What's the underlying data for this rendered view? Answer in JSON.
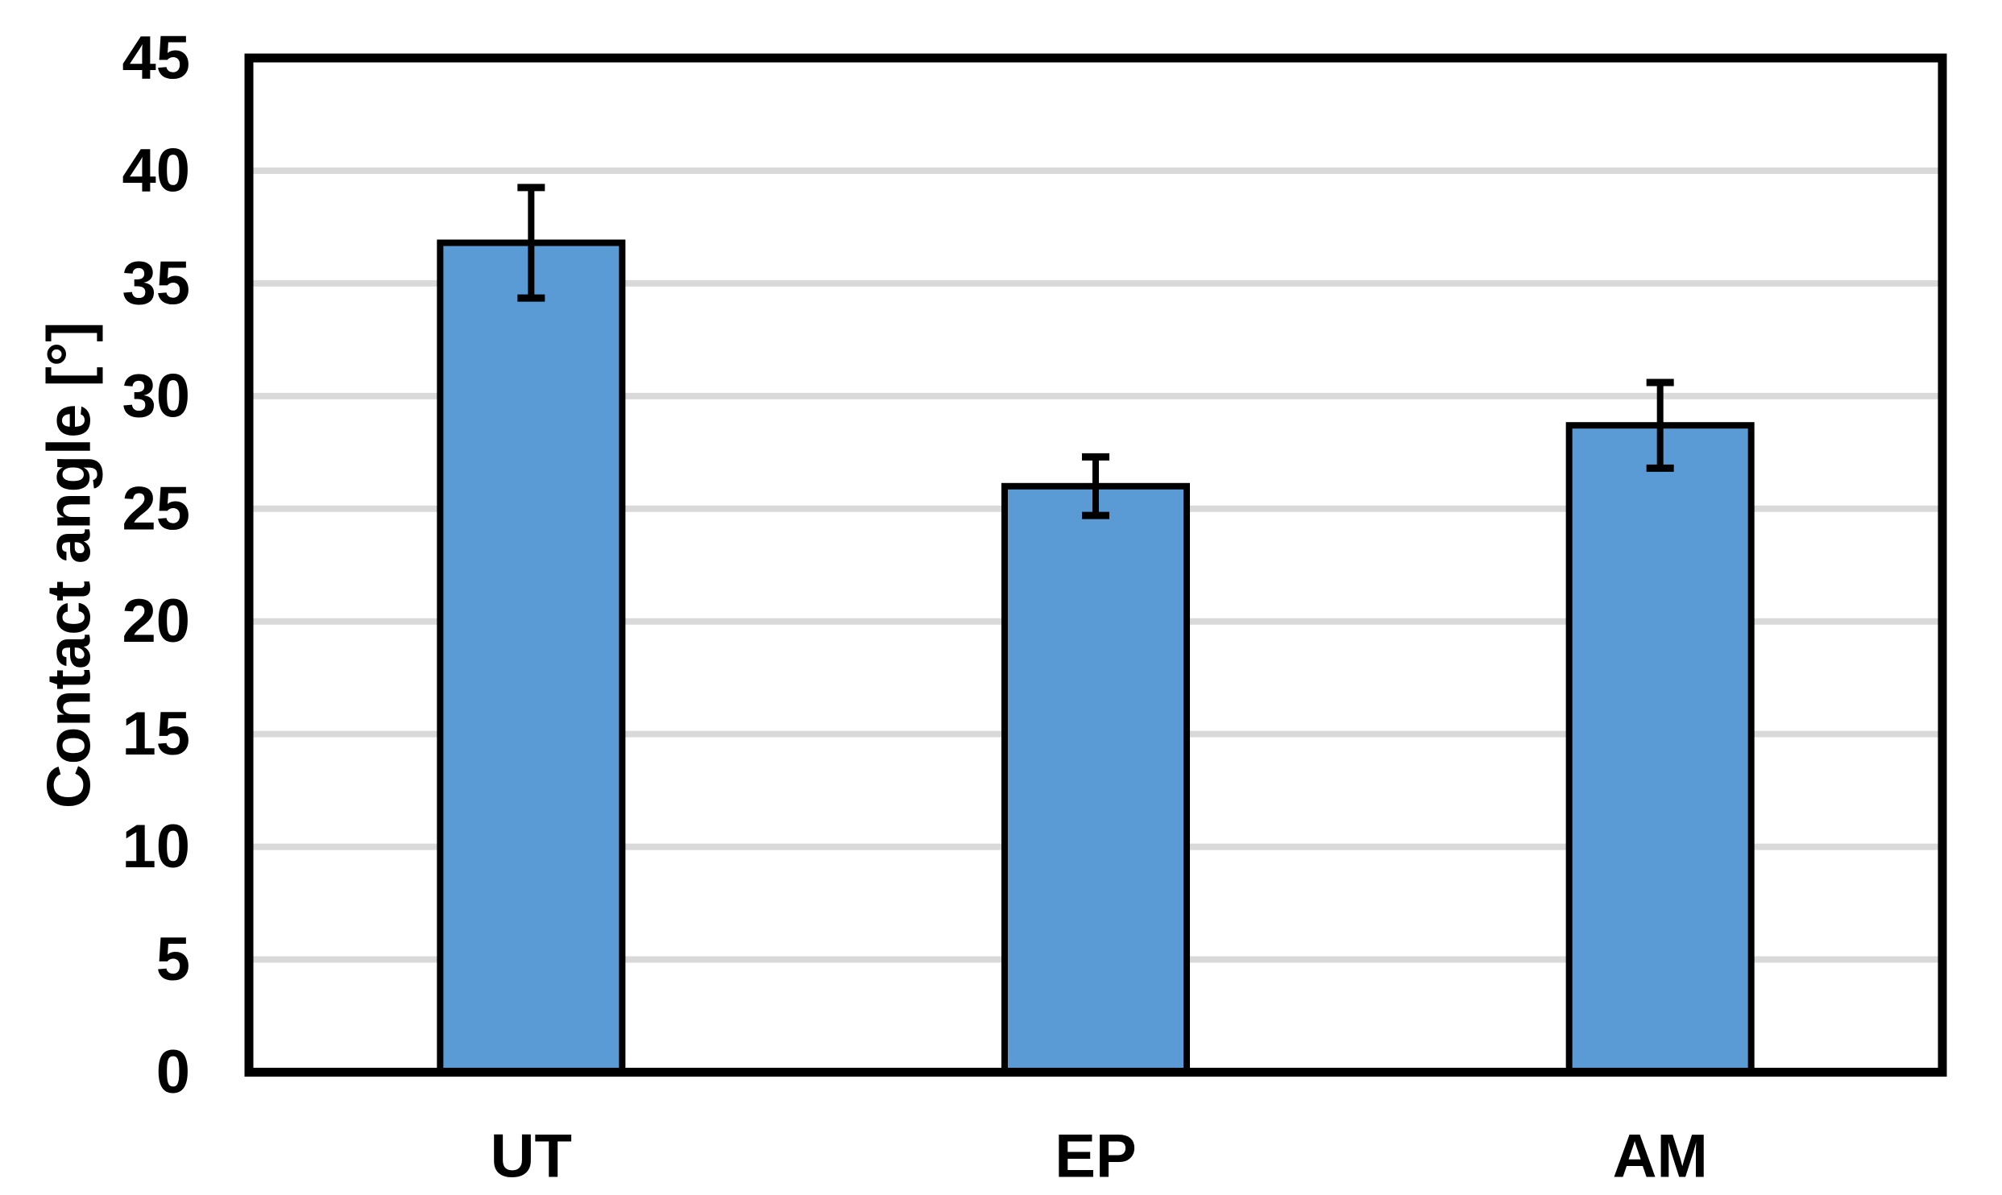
{
  "chart_data": {
    "type": "bar",
    "title": "",
    "xlabel": "",
    "ylabel": "Contact angle [°]",
    "categories": [
      "UT",
      "EP",
      "AM"
    ],
    "values": [
      36.8,
      26.0,
      28.7
    ],
    "errors": [
      2.45,
      1.3,
      1.9
    ],
    "ylim": [
      0,
      45
    ],
    "ytick_step": 5,
    "yticks": [
      "0",
      "5",
      "10",
      "15",
      "20",
      "25",
      "30",
      "35",
      "40",
      "45"
    ],
    "grid": true,
    "legend": false,
    "colors": {
      "bar_fill": "#5B9BD5",
      "bar_border": "#000000",
      "error_bar": "#000000",
      "gridline": "#D9D9D9",
      "plot_border": "#000000",
      "text": "#000000",
      "background": "#FFFFFF"
    }
  }
}
